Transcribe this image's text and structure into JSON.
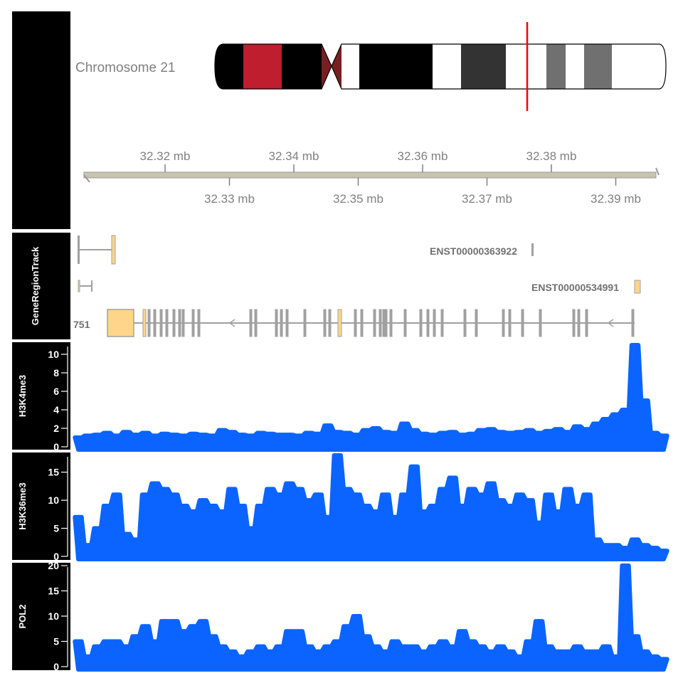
{
  "chart_data": {
    "type": "area",
    "title": "",
    "ideogram": {
      "label": "Chromosome 21",
      "highlight_color": "#FF0000"
    },
    "genome_axis": {
      "unit": "mb",
      "range": [
        32.306,
        32.395
      ],
      "ticks_top": [
        "32.32 mb",
        "32.34 mb",
        "32.36 mb",
        "32.38 mb"
      ],
      "ticks_bottom": [
        "32.33 mb",
        "32.35 mb",
        "32.37 mb",
        "32.39 mb"
      ],
      "tick_values_top": [
        32.32,
        32.34,
        32.36,
        32.38
      ],
      "tick_values_bottom": [
        32.33,
        32.35,
        32.37,
        32.39
      ]
    },
    "gene_track": {
      "title": "GeneRegionTrack",
      "transcripts": [
        {
          "label": "ENST00000363922"
        },
        {
          "label": "ENST00000534991"
        },
        {
          "label": "751"
        }
      ],
      "exon_fill": "#FFD58A",
      "outline": "#A0A0A0"
    },
    "series": [
      {
        "name": "H3K4me3",
        "ylim": [
          0,
          11
        ],
        "yticks": [
          "0",
          "2",
          "4",
          "6",
          "8",
          "10"
        ],
        "ytick_values": [
          0,
          2,
          4,
          6,
          8,
          10
        ],
        "values": [
          1,
          1.2,
          1.3,
          1.5,
          1.2,
          1.6,
          1.3,
          1.5,
          1.2,
          1.4,
          1.3,
          1.2,
          1.4,
          1.3,
          1.2,
          1.8,
          1.6,
          1.3,
          1.2,
          1.5,
          1.4,
          1.3,
          1.3,
          1.2,
          1.5,
          1.4,
          2.3,
          1.6,
          1.5,
          1.3,
          1.8,
          2,
          1.6,
          1.5,
          2.5,
          1.8,
          1.4,
          1.3,
          1.5,
          1.6,
          1.3,
          1.4,
          1.8,
          1.9,
          1.6,
          1.5,
          1.6,
          1.8,
          1.5,
          1.7,
          1.9,
          1.6,
          2.2,
          1.9,
          2.5,
          3,
          3.5,
          4,
          11,
          5,
          1.5,
          1.2
        ]
      },
      {
        "name": "H3K36me3",
        "ylim": [
          0,
          18
        ],
        "yticks": [
          "0",
          "5",
          "10",
          "15"
        ],
        "ytick_values": [
          0,
          5,
          10,
          15
        ],
        "values": [
          7,
          2,
          5,
          9,
          11,
          4,
          3,
          11,
          13,
          12,
          11,
          9,
          8,
          10,
          9,
          8,
          12,
          9,
          5,
          9,
          12,
          11,
          13,
          12,
          10,
          11,
          7,
          18,
          12,
          11,
          9,
          8,
          11,
          7,
          11,
          16,
          8,
          9,
          12,
          14,
          9,
          12,
          11,
          13,
          10,
          9,
          11,
          10,
          6,
          11,
          8,
          12,
          9,
          11,
          3,
          2,
          2,
          1.5,
          3,
          2,
          1.5,
          1
        ]
      },
      {
        "name": "POL2",
        "ylim": [
          0,
          20
        ],
        "yticks": [
          "0",
          "5",
          "10",
          "15",
          "20"
        ],
        "ytick_values": [
          0,
          5,
          10,
          15,
          20
        ],
        "values": [
          5,
          2,
          4,
          5,
          5,
          4,
          6,
          8,
          5,
          9,
          9,
          7,
          8,
          9,
          6,
          4,
          3,
          2,
          3,
          4,
          3,
          4,
          7,
          7,
          4,
          3,
          4,
          5,
          8,
          10,
          6,
          4,
          3,
          5,
          4,
          4,
          3,
          4,
          5,
          4,
          7,
          5,
          4,
          3,
          4,
          3,
          2,
          5,
          9,
          4,
          3,
          3,
          4,
          3,
          3,
          4,
          2,
          20,
          6,
          3,
          2,
          1.5
        ]
      }
    ],
    "signal_color": "#0B64FF",
    "panel_color": "#000000"
  }
}
